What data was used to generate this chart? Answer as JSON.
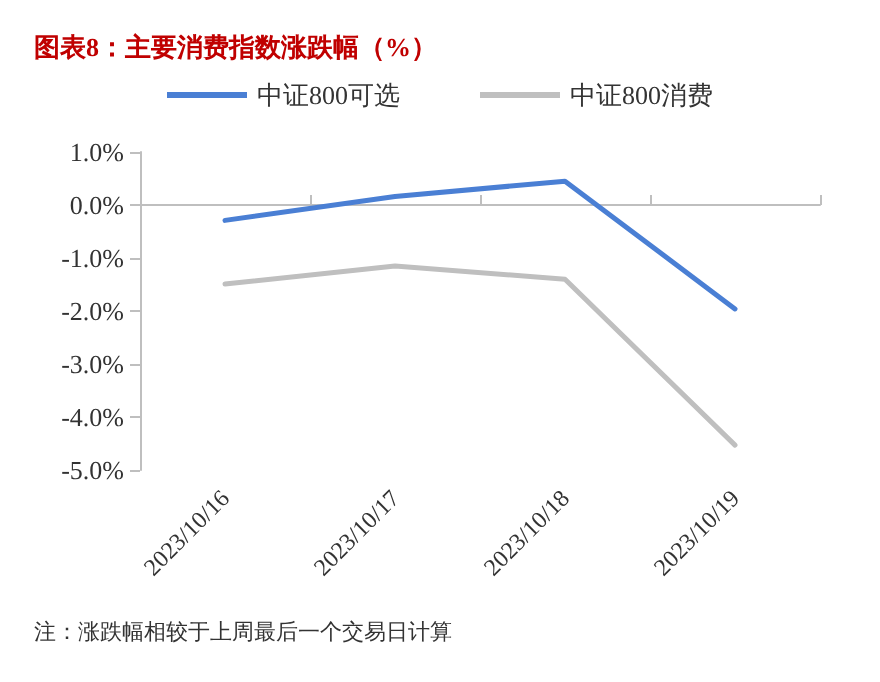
{
  "chart_data": {
    "type": "line",
    "title": "图表8：主要消费指数涨跌幅（%）",
    "categories": [
      "2023/10/16",
      "2023/10/17",
      "2023/10/18",
      "2023/10/19"
    ],
    "series": [
      {
        "name": "中证800可选",
        "color": "#4a7fd4",
        "values": [
          -0.29,
          0.16,
          0.45,
          -1.96
        ]
      },
      {
        "name": "中证800消费",
        "color": "#bfbfbf",
        "values": [
          -1.49,
          -1.15,
          -1.4,
          -4.53
        ]
      }
    ],
    "ylim": [
      -5,
      1
    ],
    "yticks": [
      {
        "value": -5,
        "label": "-5.0%"
      },
      {
        "value": -4,
        "label": "-4.0%"
      },
      {
        "value": -3,
        "label": "-3.0%"
      },
      {
        "value": -2,
        "label": "-2.0%"
      },
      {
        "value": -1,
        "label": "-1.0%"
      },
      {
        "value": 0,
        "label": "0.0%"
      },
      {
        "value": 1,
        "label": "1.0%"
      }
    ],
    "legend": "top",
    "marker": "none",
    "line_style": "solid",
    "annotations": [
      "注：涨跌幅相较于上周最后一个交易日计算"
    ]
  }
}
